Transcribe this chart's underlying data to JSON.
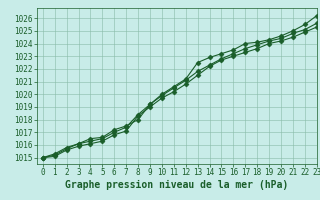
{
  "title": "Graphe pression niveau de la mer (hPa)",
  "bg_color": "#c8ece8",
  "plot_bg_color": "#c8ece8",
  "grid_color": "#88bba8",
  "line_color": "#1a5e2a",
  "marker_color": "#1a5e2a",
  "xlim": [
    -0.5,
    23
  ],
  "ylim": [
    1014.5,
    1026.8
  ],
  "yticks": [
    1015,
    1016,
    1017,
    1018,
    1019,
    1020,
    1021,
    1022,
    1023,
    1024,
    1025,
    1026
  ],
  "xticks": [
    0,
    1,
    2,
    3,
    4,
    5,
    6,
    7,
    8,
    9,
    10,
    11,
    12,
    13,
    14,
    15,
    16,
    17,
    18,
    19,
    20,
    21,
    22,
    23
  ],
  "series": [
    [
      1015.0,
      1015.3,
      1015.8,
      1016.1,
      1016.5,
      1016.6,
      1017.2,
      1017.5,
      1018.0,
      1019.2,
      1020.0,
      1020.6,
      1021.2,
      1022.5,
      1022.9,
      1023.2,
      1023.5,
      1024.0,
      1024.1,
      1024.3,
      1024.6,
      1025.0,
      1025.5,
      1026.2
    ],
    [
      1015.0,
      1015.2,
      1015.7,
      1016.1,
      1016.3,
      1016.5,
      1017.0,
      1017.4,
      1018.4,
      1019.2,
      1019.9,
      1020.5,
      1021.1,
      1021.8,
      1022.3,
      1022.8,
      1023.2,
      1023.6,
      1023.9,
      1024.2,
      1024.4,
      1024.8,
      1025.1,
      1025.6
    ],
    [
      1015.0,
      1015.1,
      1015.6,
      1015.9,
      1016.1,
      1016.3,
      1016.8,
      1017.1,
      1018.3,
      1019.0,
      1019.7,
      1020.2,
      1020.8,
      1021.5,
      1022.2,
      1022.7,
      1023.0,
      1023.3,
      1023.6,
      1024.0,
      1024.2,
      1024.5,
      1024.9,
      1025.3
    ]
  ],
  "linewidth": 0.8,
  "marker": "D",
  "markersize": 2.5,
  "title_fontsize": 7,
  "tick_fontsize": 5.5,
  "title_color": "#1a5e2a",
  "tick_color": "#1a5e2a",
  "spine_color": "#1a5e2a"
}
